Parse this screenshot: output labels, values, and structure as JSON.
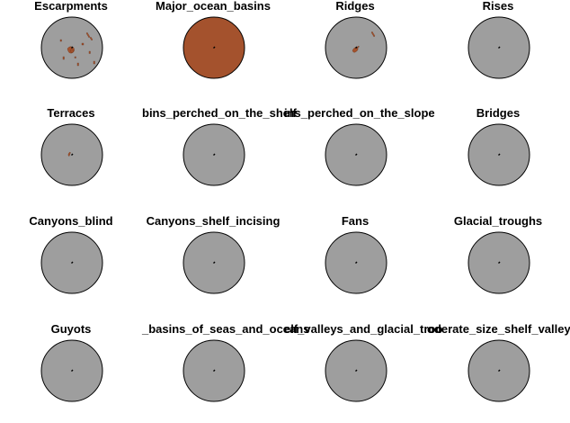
{
  "figure": {
    "background": "#ffffff",
    "globe_fill": "#9e9e9e",
    "globe_stroke": "#000000",
    "feature_fill": "#a4522d",
    "center_marker_color": "#000000"
  },
  "panels": [
    {
      "title": "Escarpments",
      "feature": "scattered"
    },
    {
      "title": "Major_ocean_basins",
      "feature": "full"
    },
    {
      "title": "Ridges",
      "feature": "ridge"
    },
    {
      "title": "Rises",
      "feature": "none"
    },
    {
      "title": "Terraces",
      "feature": "small"
    },
    {
      "title": "bins_perched_on_the_shelf",
      "feature": "none"
    },
    {
      "title": "ins_perched_on_the_slope",
      "feature": "none"
    },
    {
      "title": "Bridges",
      "feature": "none"
    },
    {
      "title": "Canyons_blind",
      "feature": "none"
    },
    {
      "title": "Canyons_shelf_incising",
      "feature": "none"
    },
    {
      "title": "Fans",
      "feature": "none"
    },
    {
      "title": "Glacial_troughs",
      "feature": "none"
    },
    {
      "title": "Guyots",
      "feature": "none"
    },
    {
      "title": "_basins_of_seas_and_oceans",
      "feature": "none"
    },
    {
      "title": "elf_valleys_and_glacial_troo",
      "feature": "none"
    },
    {
      "title": "oderate_size_shelf_valley",
      "feature": "none"
    }
  ]
}
